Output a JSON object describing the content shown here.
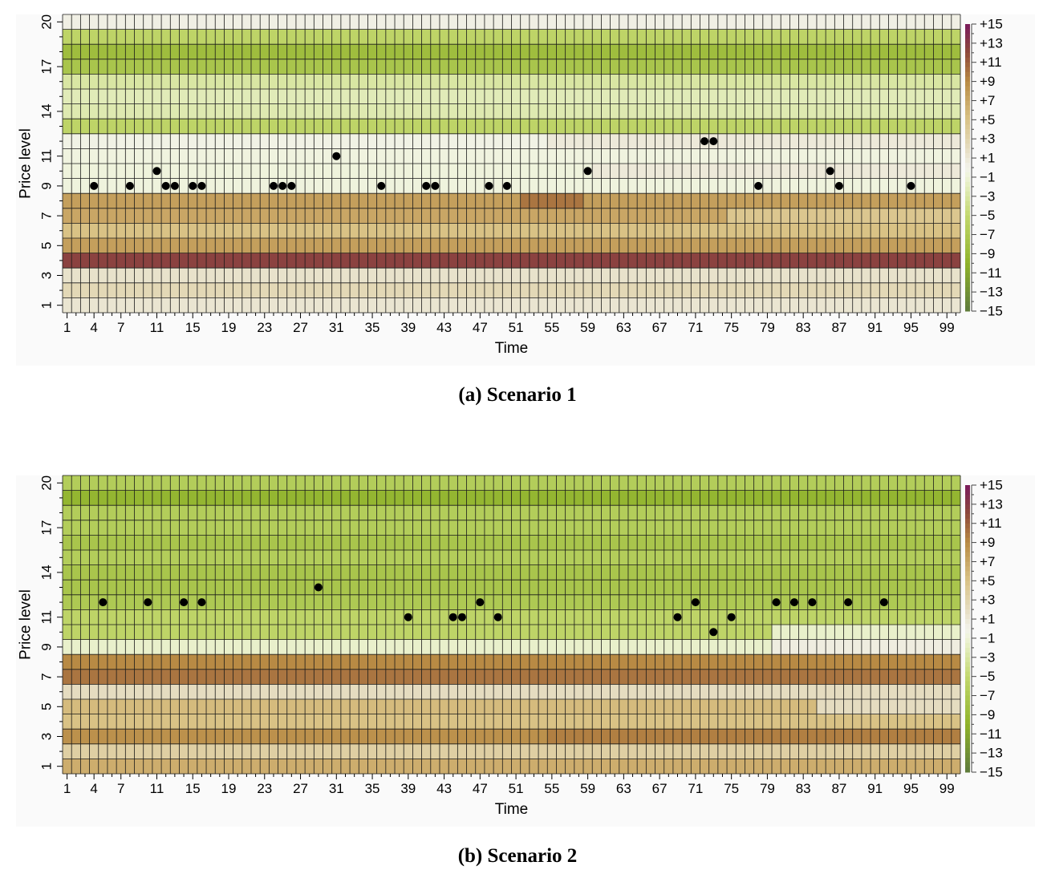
{
  "figure": {
    "captions": [
      "(a) Scenario 1",
      "(b) Scenario 2"
    ]
  },
  "chart_data": [
    {
      "type": "heatmap",
      "caption": "(a) Scenario 1",
      "xlabel": "Time",
      "ylabel": "Price level",
      "x_range": [
        1,
        100
      ],
      "y_range": [
        1,
        20
      ],
      "x_tick_labels": [
        "1",
        "4",
        "7",
        "11",
        "15",
        "19",
        "23",
        "27",
        "31",
        "35",
        "39",
        "43",
        "47",
        "51",
        "55",
        "59",
        "63",
        "67",
        "71",
        "75",
        "79",
        "83",
        "87",
        "91",
        "95",
        "99"
      ],
      "y_tick_labels": [
        "1",
        "3",
        "5",
        "7",
        "9",
        "11",
        "14",
        "17",
        "20"
      ],
      "colorbar": {
        "range": [
          -15,
          15
        ],
        "labels": [
          "+15",
          "+13",
          "+11",
          "+9",
          "+7",
          "+5",
          "+3",
          "+1",
          "−1",
          "−3",
          "−5",
          "−7",
          "−9",
          "−11",
          "−13",
          "−15"
        ],
        "colors": {
          "neg15": "#5e7a3c",
          "neg10": "#8fb22a",
          "neg5": "#c3d86e",
          "neg1": "#eef3d8",
          "zero": "#f2f2ea",
          "pos2": "#e5dcc0",
          "pos5": "#d9c285",
          "pos9": "#b88a44",
          "pos12": "#8e4a3a",
          "pos15": "#7a1a5c"
        }
      },
      "level_values": [
        1.2,
        2.5,
        1.5,
        12.5,
        7.5,
        5,
        7,
        7.5,
        -0.7,
        -0.8,
        -0.6,
        -0.3,
        -5.5,
        -2.5,
        -2.2,
        -3,
        -7.5,
        -8.5,
        -5.5,
        0.3
      ],
      "overrides": [
        {
          "level": 12,
          "x_from": 55,
          "x_to": 100,
          "value": 0.8
        },
        {
          "level": 10,
          "x_from": 60,
          "x_to": 100,
          "value": 0.8
        },
        {
          "level": 7,
          "x_from": 75,
          "x_to": 100,
          "value": 4.5
        },
        {
          "level": 8,
          "x_from": 52,
          "x_to": 58,
          "value": 10
        }
      ],
      "points": [
        {
          "x": 4,
          "y": 9
        },
        {
          "x": 8,
          "y": 9
        },
        {
          "x": 11,
          "y": 10
        },
        {
          "x": 12,
          "y": 9
        },
        {
          "x": 13,
          "y": 9
        },
        {
          "x": 15,
          "y": 9
        },
        {
          "x": 16,
          "y": 9
        },
        {
          "x": 24,
          "y": 9
        },
        {
          "x": 25,
          "y": 9
        },
        {
          "x": 26,
          "y": 9
        },
        {
          "x": 31,
          "y": 11
        },
        {
          "x": 36,
          "y": 9
        },
        {
          "x": 41,
          "y": 9
        },
        {
          "x": 42,
          "y": 9
        },
        {
          "x": 48,
          "y": 9
        },
        {
          "x": 50,
          "y": 9
        },
        {
          "x": 59,
          "y": 10
        },
        {
          "x": 72,
          "y": 12
        },
        {
          "x": 73,
          "y": 12
        },
        {
          "x": 78,
          "y": 9
        },
        {
          "x": 86,
          "y": 10
        },
        {
          "x": 87,
          "y": 9
        },
        {
          "x": 95,
          "y": 9
        }
      ]
    },
    {
      "type": "heatmap",
      "caption": "(b) Scenario 2",
      "xlabel": "Time",
      "ylabel": "Price level",
      "x_range": [
        1,
        100
      ],
      "y_range": [
        1,
        20
      ],
      "x_tick_labels": [
        "1",
        "4",
        "7",
        "11",
        "15",
        "19",
        "23",
        "27",
        "31",
        "35",
        "39",
        "43",
        "47",
        "51",
        "55",
        "59",
        "63",
        "67",
        "71",
        "75",
        "79",
        "83",
        "87",
        "91",
        "95",
        "99"
      ],
      "y_tick_labels": [
        "1",
        "3",
        "5",
        "7",
        "9",
        "11",
        "14",
        "17",
        "20"
      ],
      "colorbar": {
        "range": [
          -15,
          15
        ],
        "labels": [
          "+15",
          "+13",
          "+11",
          "+9",
          "+7",
          "+5",
          "+3",
          "+1",
          "−1",
          "−3",
          "−5",
          "−7",
          "−9",
          "−11",
          "−13",
          "−15"
        ],
        "colors": {
          "neg15": "#5e7a3c",
          "neg10": "#8fb22a",
          "neg5": "#c3d86e",
          "neg1": "#eef3d8",
          "zero": "#f2f2ea",
          "pos2": "#e5dcc0",
          "pos5": "#d9c285",
          "pos9": "#b88a44",
          "pos12": "#8e4a3a",
          "pos15": "#7a1a5c"
        }
      },
      "level_values": [
        6.5,
        3.5,
        8.5,
        5,
        5.5,
        2,
        10,
        9,
        -1.5,
        -5.5,
        -5.5,
        -7,
        -7.5,
        -7.5,
        -6.5,
        -7.5,
        -6.5,
        -6.5,
        -9.5,
        -6.5
      ],
      "overrides": [
        {
          "level": 10,
          "x_from": 80,
          "x_to": 100,
          "value": -1.5
        },
        {
          "level": 9,
          "x_from": 80,
          "x_to": 100,
          "value": 0.5
        },
        {
          "level": 3,
          "x_from": 55,
          "x_to": 100,
          "value": 9.5
        },
        {
          "level": 5,
          "x_from": 85,
          "x_to": 100,
          "value": 2
        }
      ],
      "points": [
        {
          "x": 5,
          "y": 12
        },
        {
          "x": 10,
          "y": 12
        },
        {
          "x": 14,
          "y": 12
        },
        {
          "x": 16,
          "y": 12
        },
        {
          "x": 29,
          "y": 13
        },
        {
          "x": 39,
          "y": 11
        },
        {
          "x": 44,
          "y": 11
        },
        {
          "x": 45,
          "y": 11
        },
        {
          "x": 47,
          "y": 12
        },
        {
          "x": 49,
          "y": 11
        },
        {
          "x": 69,
          "y": 11
        },
        {
          "x": 71,
          "y": 12
        },
        {
          "x": 73,
          "y": 10
        },
        {
          "x": 75,
          "y": 11
        },
        {
          "x": 80,
          "y": 12
        },
        {
          "x": 82,
          "y": 12
        },
        {
          "x": 84,
          "y": 12
        },
        {
          "x": 88,
          "y": 12
        },
        {
          "x": 92,
          "y": 12
        }
      ]
    }
  ]
}
